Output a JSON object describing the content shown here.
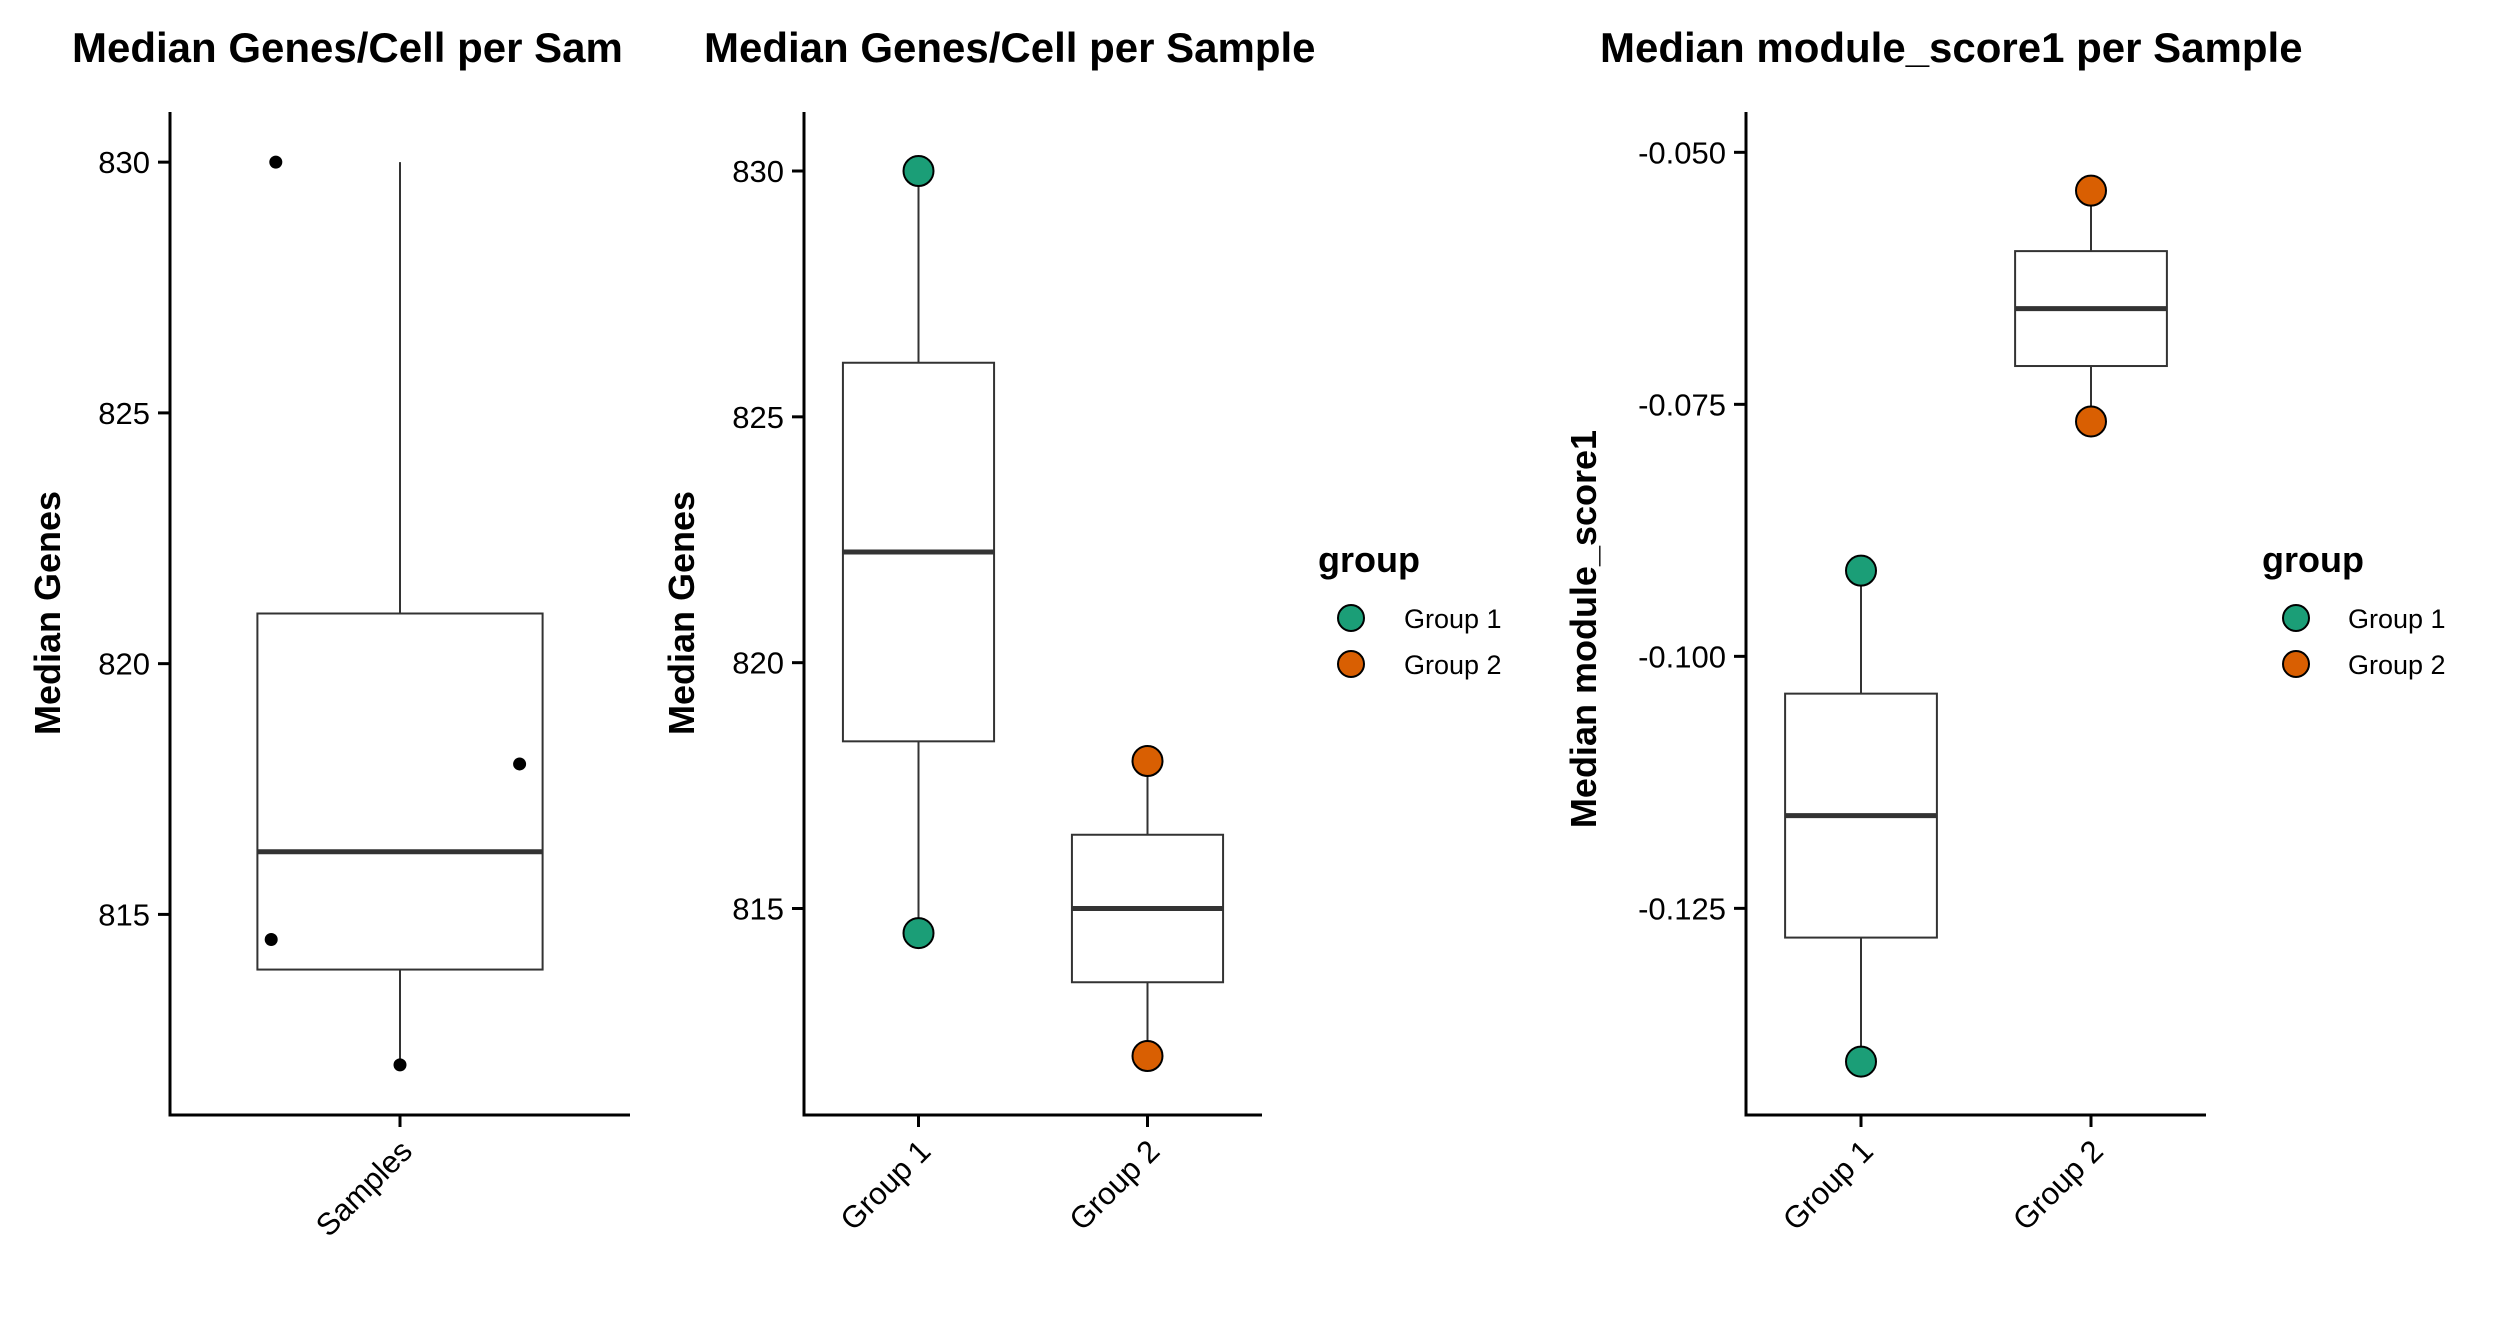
{
  "chart_data": [
    {
      "type": "boxplot",
      "title": "Median Genes/Cell per Sam",
      "xlabel": "",
      "ylabel": "Median Genes",
      "ylim": [
        811,
        831
      ],
      "yticks": [
        815,
        820,
        825,
        830
      ],
      "ytick_labels": [
        "815",
        "820",
        "825",
        "830"
      ],
      "categories": [
        "Samples"
      ],
      "boxes": [
        {
          "category": "Samples",
          "whisker_low": 812,
          "q1": 813.9,
          "median": 816.25,
          "q3": 821,
          "whisker_high": 830
        }
      ],
      "points": [
        {
          "category": "Samples",
          "offset": -0.27,
          "y": 830
        },
        {
          "category": "Samples",
          "offset": 0.26,
          "y": 818
        },
        {
          "category": "Samples",
          "offset": -0.28,
          "y": 814.5
        },
        {
          "category": "Samples",
          "offset": 0.0,
          "y": 812
        }
      ],
      "point_style": "small-black"
    },
    {
      "type": "boxplot",
      "title": "Median Genes/Cell per Sample",
      "xlabel": "",
      "ylabel": "Median Genes",
      "ylim": [
        810.8,
        831.2
      ],
      "yticks": [
        815,
        820,
        825,
        830
      ],
      "ytick_labels": [
        "815",
        "820",
        "825",
        "830"
      ],
      "categories": [
        "Group 1",
        "Group 2"
      ],
      "boxes": [
        {
          "category": "Group 1",
          "whisker_low": 814.5,
          "q1": 818.4,
          "median": 822.25,
          "q3": 826.1,
          "whisker_high": 830
        },
        {
          "category": "Group 2",
          "whisker_low": 812,
          "q1": 813.5,
          "median": 815,
          "q3": 816.5,
          "whisker_high": 818
        }
      ],
      "points": [
        {
          "category": "Group 1",
          "y": 830,
          "group": "Group 1"
        },
        {
          "category": "Group 1",
          "y": 814.5,
          "group": "Group 1"
        },
        {
          "category": "Group 2",
          "y": 818,
          "group": "Group 2"
        },
        {
          "category": "Group 2",
          "y": 812,
          "group": "Group 2"
        }
      ],
      "point_style": "group-colored",
      "legend": {
        "title": "group",
        "entries": [
          "Group 1",
          "Group 2"
        ],
        "position": "right"
      }
    },
    {
      "type": "boxplot",
      "title": "Median module_score1 per Sample",
      "xlabel": "",
      "ylabel": "Median module_score1",
      "ylim": [
        -0.1455,
        -0.046
      ],
      "yticks": [
        -0.125,
        -0.1,
        -0.075,
        -0.05
      ],
      "ytick_labels": [
        "-0.125",
        "-0.100",
        "-0.075",
        "-0.050"
      ],
      "categories": [
        "Group 1",
        "Group 2"
      ],
      "boxes": [
        {
          "category": "Group 1",
          "whisker_low": -0.1402,
          "q1": -0.1279,
          "median": -0.1158,
          "q3": -0.1037,
          "whisker_high": -0.0915
        },
        {
          "category": "Group 2",
          "whisker_low": -0.0767,
          "q1": -0.0712,
          "median": -0.0655,
          "q3": -0.0598,
          "whisker_high": -0.0538
        }
      ],
      "points": [
        {
          "category": "Group 1",
          "y": -0.0915,
          "group": "Group 1"
        },
        {
          "category": "Group 1",
          "y": -0.1402,
          "group": "Group 1"
        },
        {
          "category": "Group 2",
          "y": -0.0538,
          "group": "Group 2"
        },
        {
          "category": "Group 2",
          "y": -0.0767,
          "group": "Group 2"
        }
      ],
      "point_style": "group-colored",
      "legend": {
        "title": "group",
        "entries": [
          "Group 1",
          "Group 2"
        ],
        "position": "right"
      }
    }
  ],
  "colors": {
    "Group 1": "#1b9e77",
    "Group 2": "#d95f02",
    "box": "#333333",
    "axis": "#000000"
  }
}
